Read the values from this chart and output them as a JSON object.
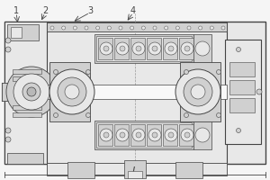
{
  "bg_color": "#f5f5f5",
  "line_color": "#444444",
  "mid_color": "#888888",
  "light_fill": "#e8e8e8",
  "mid_fill": "#d0d0d0",
  "dark_fill": "#b8b8b8",
  "white_fill": "#f8f8f8"
}
